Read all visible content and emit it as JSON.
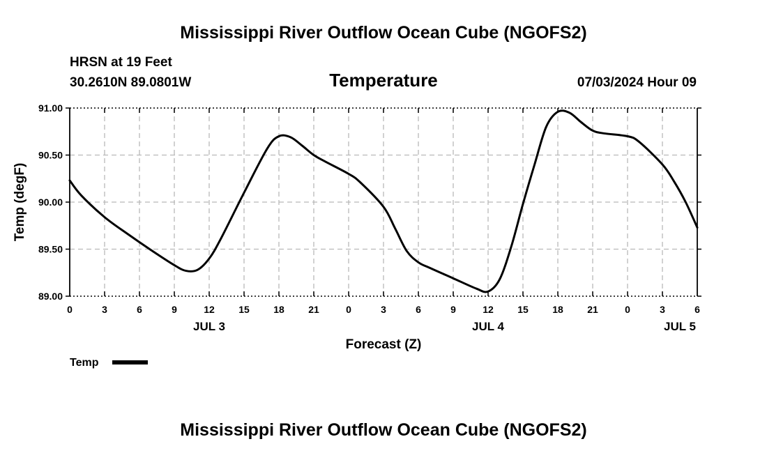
{
  "header": {
    "title": "Mississippi River Outflow Ocean Cube (NGOFS2)",
    "station": "HRSN at 19 Feet",
    "location": "30.2610N  89.0801W",
    "variable": "Temperature",
    "datetime": "07/03/2024 Hour 09"
  },
  "footer": {
    "title": "Mississippi River Outflow Ocean Cube (NGOFS2)"
  },
  "chart_data": {
    "type": "line",
    "title": "Temperature",
    "xlabel": "Forecast (Z)",
    "ylabel": "Temp (degF)",
    "ylim": [
      89.0,
      91.0
    ],
    "xlim": [
      0,
      54
    ],
    "yticks": [
      {
        "value": 89.0,
        "label": "89.00"
      },
      {
        "value": 89.5,
        "label": "89.50"
      },
      {
        "value": 90.0,
        "label": "90.00"
      },
      {
        "value": 90.5,
        "label": "90.50"
      },
      {
        "value": 91.0,
        "label": "91.00"
      }
    ],
    "xticks": [
      {
        "value": 0,
        "label": "0"
      },
      {
        "value": 3,
        "label": "3"
      },
      {
        "value": 6,
        "label": "6"
      },
      {
        "value": 9,
        "label": "9"
      },
      {
        "value": 12,
        "label": "12"
      },
      {
        "value": 15,
        "label": "15"
      },
      {
        "value": 18,
        "label": "18"
      },
      {
        "value": 21,
        "label": "21"
      },
      {
        "value": 24,
        "label": "0"
      },
      {
        "value": 27,
        "label": "3"
      },
      {
        "value": 30,
        "label": "6"
      },
      {
        "value": 33,
        "label": "9"
      },
      {
        "value": 36,
        "label": "12"
      },
      {
        "value": 39,
        "label": "15"
      },
      {
        "value": 42,
        "label": "18"
      },
      {
        "value": 45,
        "label": "21"
      },
      {
        "value": 48,
        "label": "0"
      },
      {
        "value": 51,
        "label": "3"
      },
      {
        "value": 54,
        "label": "6"
      }
    ],
    "date_labels": [
      {
        "value": 12,
        "label": "JUL 3"
      },
      {
        "value": 36,
        "label": "JUL 4"
      },
      {
        "value": 52.5,
        "label": "JUL 5"
      }
    ],
    "grid": true,
    "legend": "bottom-left",
    "series": [
      {
        "name": "Temp",
        "x": [
          0,
          1,
          3,
          5,
          7,
          9,
          10,
          11,
          12,
          13,
          15,
          17,
          18,
          19,
          20,
          21,
          22,
          24,
          25,
          27,
          28,
          29,
          30,
          31,
          33,
          35,
          36,
          37,
          38,
          39,
          40,
          41,
          42,
          43,
          44,
          45,
          46,
          48,
          49,
          51,
          52,
          53,
          54
        ],
        "values": [
          90.23,
          90.07,
          89.84,
          89.66,
          89.49,
          89.33,
          89.27,
          89.28,
          89.4,
          89.61,
          90.1,
          90.57,
          90.7,
          90.69,
          90.6,
          90.5,
          90.43,
          90.3,
          90.21,
          89.95,
          89.72,
          89.48,
          89.36,
          89.3,
          89.19,
          89.08,
          89.05,
          89.18,
          89.53,
          89.98,
          90.4,
          90.8,
          90.96,
          90.95,
          90.85,
          90.76,
          90.73,
          90.7,
          90.64,
          90.4,
          90.22,
          90.0,
          89.73
        ]
      }
    ]
  }
}
